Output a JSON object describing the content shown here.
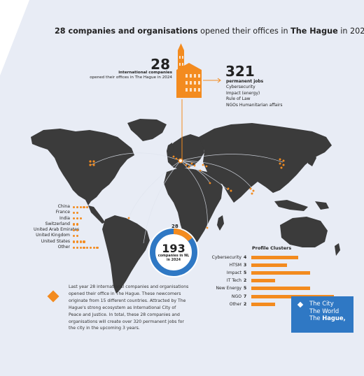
{
  "title": {
    "part1": "28 companies and organisations",
    "part2": " opened their offices in ",
    "part3": "The Hague",
    "part4": " in 2024"
  },
  "companies_block": {
    "number": "28",
    "label_bold": "international companies",
    "label_rest": "opened their offices in The Hague in 2024"
  },
  "jobs_block": {
    "number": "321",
    "label": "permanent jobs",
    "sectors": [
      "Cybersecurity",
      "Impact (energy)",
      "Rule of Law",
      "NGOs Humanitarian affairs"
    ]
  },
  "countries_legend": [
    {
      "name": "China",
      "count": 5
    },
    {
      "name": "France",
      "count": 2
    },
    {
      "name": "India",
      "count": 3
    },
    {
      "name": "Switzerland",
      "count": 2
    },
    {
      "name": "United Arab Emirates",
      "count": 2
    },
    {
      "name": "United Kingdom",
      "count": 2
    },
    {
      "name": "United States",
      "count": 4
    },
    {
      "name": "Other",
      "count": 8
    }
  ],
  "donut": {
    "total": "193",
    "sub": "companies in NL in 2024",
    "highlight": "28"
  },
  "chart_data": {
    "type": "bar",
    "title": "Profile Clusters",
    "categories": [
      "Cybersecurity",
      "HTSM",
      "Impact",
      "IT Tech",
      "New Energy",
      "NGO",
      "Other"
    ],
    "values": [
      4,
      3,
      5,
      2,
      5,
      7,
      2
    ]
  },
  "paragraph": "Last year 28 international companies and organisations opened their office in The Hague. These newcomers originate from 15 different countries. Attracted by The Hague's strong ecosystem as International City of Peace and Justice. In total, these 28 companies and organisations will create over 320 permanent jobs for the city in the upcoming 3 years.",
  "logo": {
    "line1": "The City",
    "line2": "The World",
    "line3_pre": "The ",
    "line3_bold": "Hague,"
  },
  "colors": {
    "accent": "#f38b1f",
    "map": "#3b3b3b",
    "background": "#e8ecf5",
    "brand_blue": "#2f78c4"
  }
}
